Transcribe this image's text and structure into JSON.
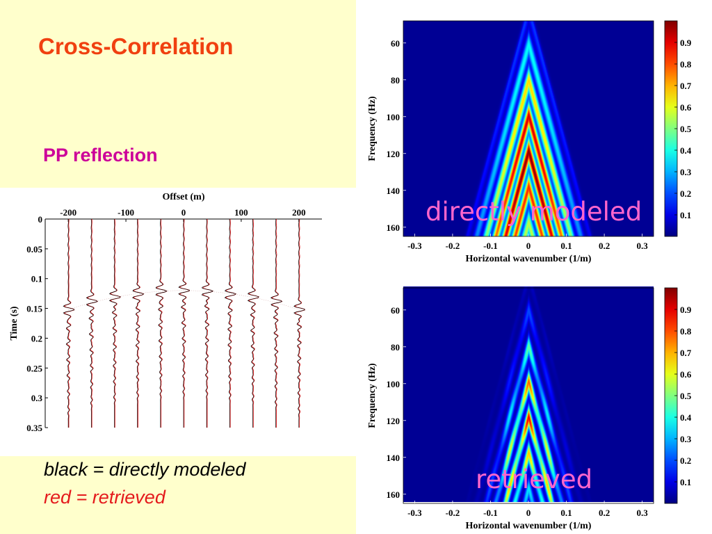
{
  "slide": {
    "title": "Cross-Correlation",
    "subtitle": "PP reflection",
    "legend_black": "black = directly modeled",
    "legend_red": "red = retrieved"
  },
  "colors": {
    "background_panel": "#ffffcc",
    "title": "#f04010",
    "subtitle": "#cc0099",
    "overlay_label": "#ff66cc",
    "trace_black": "#000000",
    "trace_red": "#e41a1c"
  },
  "chart_data": [
    {
      "type": "line",
      "subtype": "seismic-wiggle-traces",
      "xlabel": "Offset (m)",
      "ylabel": "Time (s)",
      "x_ticks": [
        "-200",
        "-100",
        "0",
        "100",
        "200"
      ],
      "y_ticks": [
        "0",
        "0.05",
        "0.1",
        "0.15",
        "0.2",
        "0.25",
        "0.3",
        "0.35"
      ],
      "xlim": [
        -240,
        240
      ],
      "ylim": [
        0,
        0.35
      ],
      "x_axis_position": "top",
      "y_inverted": true,
      "trace_offsets": [
        -200,
        -160,
        -120,
        -80,
        -40,
        0,
        40,
        80,
        120,
        160,
        200
      ],
      "event_times": [
        0.152,
        0.138,
        0.131,
        0.126,
        0.121,
        0.12,
        0.121,
        0.126,
        0.131,
        0.138,
        0.152
      ],
      "series": [
        {
          "name": "black = directly modeled",
          "color": "#000000"
        },
        {
          "name": "red = retrieved",
          "color": "#e41a1c"
        }
      ]
    },
    {
      "type": "heatmap",
      "xlabel": "Horizontal wavenumber (1/m)",
      "ylabel": "Frequency (Hz)",
      "x_ticks": [
        "-0.3",
        "-0.2",
        "-0.1",
        "0",
        "0.1",
        "0.2",
        "0.3"
      ],
      "y_ticks": [
        "60",
        "80",
        "100",
        "120",
        "140",
        "160"
      ],
      "xlim": [
        -0.33,
        0.33
      ],
      "ylim": [
        48,
        165
      ],
      "y_inverted": true,
      "colorbar_ticks": [
        "0.9",
        "0.8",
        "0.7",
        "0.6",
        "0.5",
        "0.4",
        "0.3",
        "0.2",
        "0.1"
      ],
      "colorbar_range": [
        0,
        1
      ],
      "colormap": "jet",
      "annotation": "directly modeled",
      "peak_amplitude": 1.0
    },
    {
      "type": "heatmap",
      "xlabel": "Horizontal wavenumber (1/m)",
      "ylabel": "Frequency (Hz)",
      "x_ticks": [
        "-0.3",
        "-0.2",
        "-0.1",
        "0",
        "0.1",
        "0.2",
        "0.3"
      ],
      "y_ticks": [
        "60",
        "80",
        "100",
        "120",
        "140",
        "160"
      ],
      "xlim": [
        -0.33,
        0.33
      ],
      "ylim": [
        48,
        165
      ],
      "y_inverted": true,
      "colorbar_ticks": [
        "0.9",
        "0.8",
        "0.7",
        "0.6",
        "0.5",
        "0.4",
        "0.3",
        "0.2",
        "0.1"
      ],
      "colorbar_range": [
        0,
        1
      ],
      "colormap": "jet",
      "annotation": "retrieved",
      "peak_amplitude": 0.9
    }
  ]
}
